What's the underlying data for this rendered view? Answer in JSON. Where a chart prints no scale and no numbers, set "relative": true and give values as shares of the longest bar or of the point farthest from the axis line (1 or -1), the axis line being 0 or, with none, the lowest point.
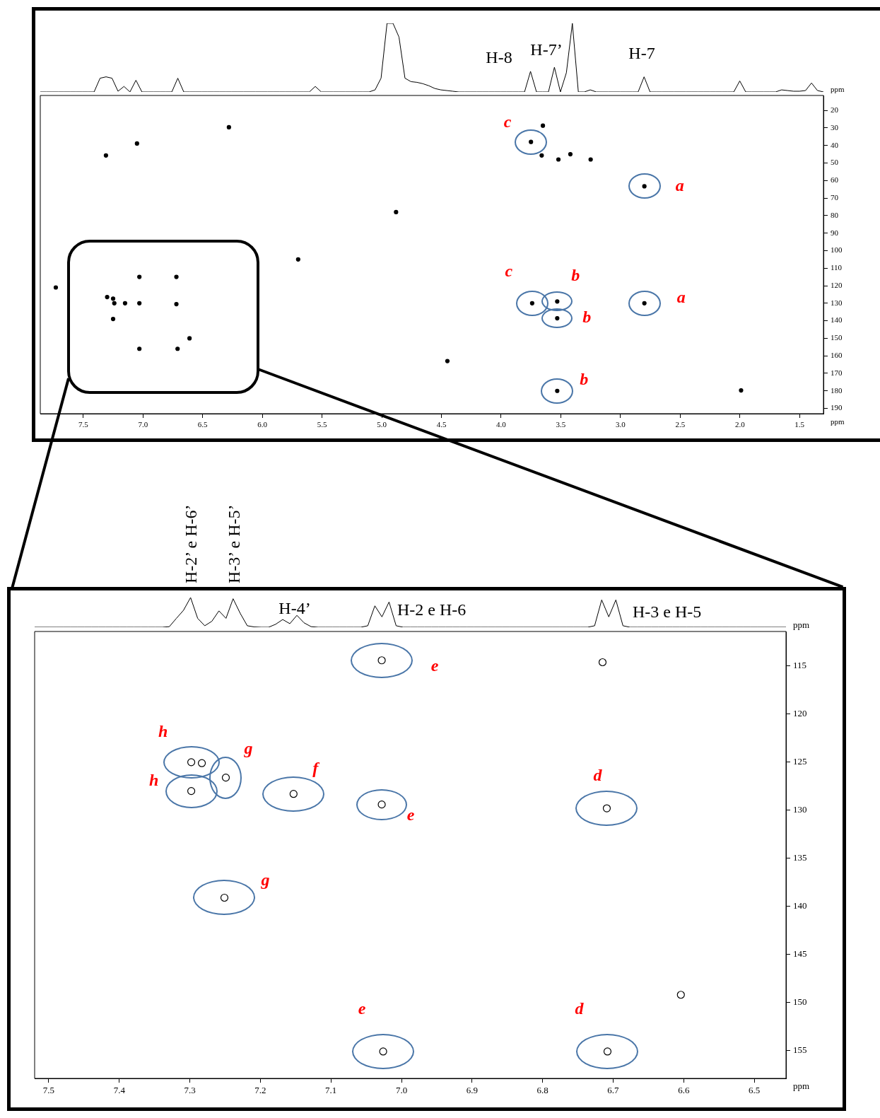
{
  "chart_data": [
    {
      "type": "line",
      "relative": true,
      "color": "#000000",
      "categories": [
        null,
        null,
        null,
        null,
        null,
        null,
        null,
        null,
        null,
        null,
        null,
        null,
        null,
        null,
        null,
        null,
        null,
        null,
        null,
        null,
        null,
        null,
        null,
        null,
        null,
        null,
        null,
        null,
        null,
        null,
        null,
        null,
        null,
        null,
        null,
        null,
        null,
        null,
        null,
        null,
        null,
        null,
        null,
        null,
        null,
        null,
        null,
        null,
        null,
        null,
        null,
        null,
        null,
        null,
        null,
        null,
        null,
        null,
        null,
        null,
        null,
        null,
        null,
        null,
        null,
        null,
        null,
        null,
        null,
        null,
        null,
        null,
        null,
        null,
        null,
        null,
        null,
        null,
        null,
        null,
        null,
        null,
        null,
        null,
        null,
        null,
        null,
        null,
        null,
        null,
        null,
        null,
        null,
        null,
        null,
        null,
        null,
        null,
        null,
        null,
        null,
        null,
        null,
        null,
        null,
        null,
        null,
        null,
        null,
        null,
        null,
        null,
        null,
        null,
        null,
        null,
        null,
        null,
        null,
        null,
        null,
        null,
        null,
        null,
        null,
        null,
        null,
        null,
        null,
        null,
        null,
        null
      ],
      "values": [
        0,
        0,
        0,
        0,
        0,
        0,
        0,
        0,
        0,
        0,
        0.2,
        0.22,
        0.2,
        0.01,
        0.08,
        0,
        0.17,
        0,
        0,
        0,
        0,
        0,
        0,
        0.2,
        0,
        0,
        0,
        0,
        0,
        0,
        0,
        0,
        0,
        0,
        0,
        0,
        0,
        0,
        0,
        0,
        0,
        0,
        0,
        0,
        0,
        0,
        0.08,
        0,
        0,
        0,
        0,
        0,
        0,
        0,
        0,
        0,
        0.03,
        0.2,
        1,
        1,
        0.8,
        0.2,
        0.15,
        0.14,
        0.12,
        0.09,
        0.05,
        0.03,
        0.02,
        0.01,
        0,
        0,
        0,
        0,
        0,
        0,
        0,
        0,
        0,
        0,
        0,
        0,
        0.3,
        0,
        0,
        0,
        0.36,
        0,
        0.28,
        1,
        0,
        0,
        0.03,
        0,
        0,
        0,
        0,
        0,
        0,
        0,
        0,
        0.22,
        0,
        0,
        0,
        0,
        0,
        0,
        0,
        0,
        0,
        0,
        0,
        0,
        0,
        0,
        0,
        0.16,
        0,
        0,
        0,
        0,
        0,
        0,
        0.03,
        0.02,
        0.01,
        0.01,
        0.02,
        0.13,
        0.02,
        0
      ],
      "annotations": [
        "H-8",
        "H-7’",
        "H-7"
      ]
    },
    {
      "type": "scatter",
      "color": "#000000",
      "marker": "circle",
      "xlim": [
        7.86,
        1.3
      ],
      "ylim": [
        193,
        11.5
      ],
      "xticks": [
        7.5,
        {
          "value": 7,
          "label": "7.0"
        },
        6.5,
        {
          "value": 6,
          "label": "6.0"
        },
        5.5,
        {
          "value": 5,
          "label": "5.0"
        },
        4.5,
        {
          "value": 4,
          "label": "4.0"
        },
        3.5,
        {
          "value": 3,
          "label": "3.0"
        },
        2.5,
        {
          "value": 2,
          "label": "2.0"
        },
        1.5
      ],
      "yticks": [
        20,
        30,
        40,
        50,
        60,
        70,
        80,
        90,
        100,
        110,
        120,
        130,
        140,
        150,
        160,
        170,
        180,
        190
      ],
      "xlabel": "ppm",
      "ylabel": "ppm",
      "x": [
        7.31,
        7.05,
        6.28,
        3.75,
        3.65,
        3.66,
        3.52,
        3.42,
        3.25,
        2.8,
        4.88,
        5.7,
        7.73,
        7.3,
        7.25,
        7.24,
        7.15,
        7.03,
        7.03,
        6.72,
        6.72,
        7.25,
        7.03,
        6.71,
        6.61,
        3.74,
        3.53,
        3.53,
        2.8,
        4.45,
        3.53,
        1.99
      ],
      "values": [
        45.7,
        38.9,
        29.6,
        38,
        28.7,
        45.7,
        48,
        45,
        48,
        63.3,
        78,
        105,
        121,
        126.5,
        127.4,
        130,
        130,
        130,
        115,
        115,
        130.5,
        139,
        156,
        156,
        150,
        130,
        129,
        138.6,
        130,
        163,
        180,
        179.7
      ],
      "annotations": [
        {
          "text": "c",
          "x": 3.75,
          "y": 38
        },
        {
          "text": "a",
          "x": 2.8,
          "y": 63.3
        },
        {
          "text": "c",
          "x": 3.74,
          "y": 130
        },
        {
          "text": "b",
          "x": 3.53,
          "y": 129
        },
        {
          "text": "b",
          "x": 3.53,
          "y": 138.6
        },
        {
          "text": "a",
          "x": 2.8,
          "y": 130
        },
        {
          "text": "b",
          "x": 3.53,
          "y": 180
        }
      ]
    },
    {
      "type": "line",
      "relative": true,
      "color": "#000000",
      "categories": [
        null,
        null,
        null,
        null,
        null,
        null,
        null,
        null,
        null,
        null,
        null,
        null,
        null,
        null,
        null,
        null,
        null,
        null,
        null,
        null,
        null,
        null,
        null,
        null,
        null,
        null,
        null,
        null,
        null,
        null,
        null,
        null,
        null,
        null,
        null,
        null,
        null,
        null,
        null,
        null,
        null,
        null,
        null,
        null,
        null,
        null,
        null,
        null,
        null,
        null,
        null,
        null,
        null,
        null,
        null,
        null,
        null,
        null,
        null,
        null,
        null,
        null,
        null,
        null,
        null,
        null,
        null,
        null,
        null,
        null,
        null,
        null,
        null,
        null,
        null,
        null,
        null,
        null,
        null,
        null,
        null,
        null,
        null,
        null,
        null,
        null,
        null,
        null,
        null,
        null,
        null,
        null,
        null,
        null,
        null,
        null,
        null,
        null,
        null,
        null,
        null,
        null,
        null,
        null,
        null,
        null,
        null
      ],
      "values": [
        0,
        0,
        0,
        0,
        0,
        0,
        0,
        0,
        0,
        0,
        0,
        0,
        0,
        0,
        0,
        0,
        0,
        0,
        0,
        0.02,
        0.3,
        0.57,
        1,
        0.3,
        0.05,
        0.2,
        0.55,
        0.3,
        0.96,
        0.47,
        0.05,
        0.01,
        0,
        0,
        0.1,
        0.26,
        0.12,
        0.4,
        0.15,
        0.02,
        0,
        0,
        0,
        0,
        0,
        0,
        0,
        0.05,
        0.72,
        0.35,
        0.85,
        0.05,
        0,
        0,
        0,
        0,
        0,
        0,
        0,
        0,
        0,
        0,
        0,
        0,
        0,
        0,
        0,
        0,
        0,
        0,
        0,
        0,
        0,
        0,
        0,
        0,
        0,
        0,
        0,
        0.05,
        0.92,
        0.35,
        0.92,
        0.05,
        0,
        0,
        0,
        0,
        0,
        0,
        0,
        0,
        0,
        0,
        0,
        0,
        0,
        0,
        0,
        0,
        0,
        0,
        0,
        0,
        0,
        0,
        0
      ],
      "annotations": [
        "H-2’ e H-6’",
        "H-3’ e H-5’",
        "H-4’",
        "H-2 e H-6",
        "H-3 e H-5"
      ]
    },
    {
      "type": "scatter",
      "color": "#000000",
      "marker": "circle",
      "xlim": [
        7.52,
        6.455
      ],
      "ylim": [
        157.9,
        111.4
      ],
      "xticks": [
        7.5,
        7.4,
        7.3,
        7.2,
        7.1,
        {
          "value": 7,
          "label": "7.0"
        },
        6.9,
        6.8,
        6.7,
        6.6,
        6.5
      ],
      "yticks": [
        115,
        120,
        125,
        130,
        135,
        140,
        145,
        150,
        155
      ],
      "xlabel": "ppm",
      "ylabel": "ppm",
      "x": [
        7.028,
        6.715,
        7.298,
        7.283,
        7.298,
        7.249,
        7.153,
        7.028,
        6.709,
        7.251,
        6.604,
        7.026,
        6.708
      ],
      "values": [
        114.4,
        114.6,
        125.0,
        125.1,
        128.0,
        126.6,
        128.3,
        129.4,
        129.8,
        139.1,
        149.2,
        155.1,
        155.1
      ],
      "annotations": [
        {
          "text": "e",
          "x": 7.028,
          "y": 114.4
        },
        {
          "text": "h",
          "x": 7.298,
          "y": 125.0
        },
        {
          "text": "g",
          "x": 7.249,
          "y": 126.6
        },
        {
          "text": "h",
          "x": 7.298,
          "y": 128.0
        },
        {
          "text": "f",
          "x": 7.153,
          "y": 128.3
        },
        {
          "text": "e",
          "x": 7.028,
          "y": 129.4
        },
        {
          "text": "d",
          "x": 6.709,
          "y": 129.8
        },
        {
          "text": "g",
          "x": 7.251,
          "y": 139.1
        },
        {
          "text": "e",
          "x": 7.026,
          "y": 155.1
        },
        {
          "text": "d",
          "x": 6.708,
          "y": 155.1
        }
      ]
    }
  ]
}
